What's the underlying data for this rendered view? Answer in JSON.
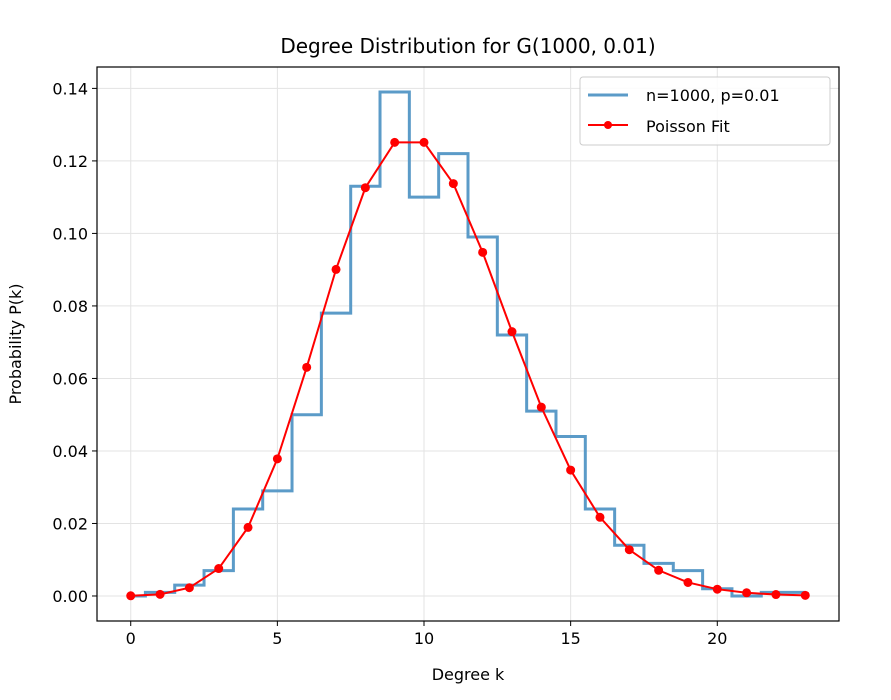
{
  "chart_data": {
    "type": "line",
    "title": "Degree Distribution for G(1000, 0.01)",
    "xlabel": "Degree k",
    "ylabel": "Probability P(k)",
    "xlim": [
      -1.15,
      24.15
    ],
    "ylim": [
      -0.0069,
      0.1459
    ],
    "xticks": [
      0,
      5,
      10,
      15,
      20
    ],
    "xtick_labels": [
      "0",
      "5",
      "10",
      "15",
      "20"
    ],
    "yticks": [
      0.0,
      0.02,
      0.04,
      0.06,
      0.08,
      0.1,
      0.12,
      0.14
    ],
    "ytick_labels": [
      "0.00",
      "0.02",
      "0.04",
      "0.06",
      "0.08",
      "0.10",
      "0.12",
      "0.14"
    ],
    "grid": true,
    "legend_position": "top-right",
    "series": [
      {
        "name": "n=1000, p=0.01",
        "kind": "step",
        "color": "#5b9bc8",
        "x": [
          0,
          1,
          2,
          3,
          4,
          5,
          6,
          7,
          8,
          9,
          10,
          11,
          12,
          13,
          14,
          15,
          16,
          17,
          18,
          19,
          20,
          21,
          22,
          23
        ],
        "values": [
          0.0,
          0.001,
          0.003,
          0.007,
          0.024,
          0.029,
          0.05,
          0.078,
          0.113,
          0.139,
          0.11,
          0.122,
          0.099,
          0.072,
          0.051,
          0.044,
          0.024,
          0.014,
          0.009,
          0.007,
          0.002,
          0.0,
          0.001,
          0.001
        ]
      },
      {
        "name": "Poisson Fit",
        "kind": "line-markers",
        "color": "#ff0000",
        "x": [
          0,
          1,
          2,
          3,
          4,
          5,
          6,
          7,
          8,
          9,
          10,
          11,
          12,
          13,
          14,
          15,
          16,
          17,
          18,
          19,
          20,
          21,
          22,
          23
        ],
        "values": [
          5e-05,
          0.00045,
          0.00227,
          0.00757,
          0.01892,
          0.03783,
          0.06306,
          0.09008,
          0.1126,
          0.12511,
          0.12511,
          0.11374,
          0.09478,
          0.07291,
          0.05208,
          0.03472,
          0.0217,
          0.01276,
          0.00709,
          0.00373,
          0.00187,
          0.00089,
          0.0004,
          0.00018
        ]
      }
    ]
  }
}
